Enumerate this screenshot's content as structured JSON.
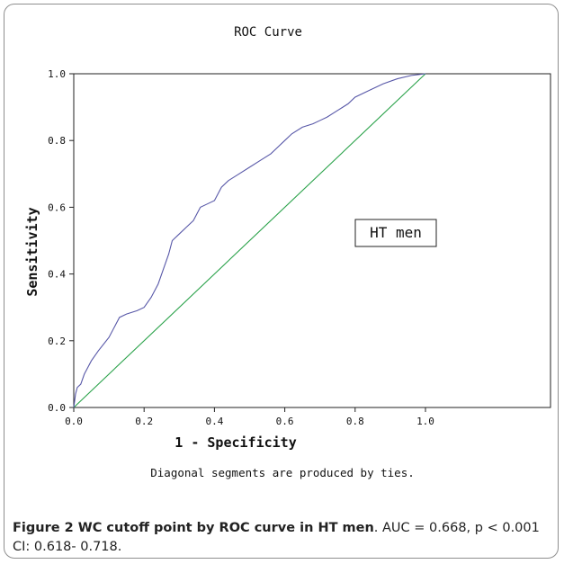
{
  "chart_data": {
    "type": "line",
    "title": "ROC Curve",
    "xlabel": "1 - Specificity",
    "ylabel": "Sensitivity",
    "xlim": [
      0,
      1
    ],
    "ylim": [
      0,
      1
    ],
    "x_ticks": [
      "0.0",
      "0.2",
      "0.4",
      "0.6",
      "0.8",
      "1.0"
    ],
    "y_ticks": [
      "0.0",
      "0.2",
      "0.4",
      "0.6",
      "0.8",
      "1.0"
    ],
    "grid": false,
    "annotation": "HT men",
    "note": "Diagonal segments are produced by ties.",
    "series": [
      {
        "color": "#5858a8",
        "x": [
          0,
          0.005,
          0.01,
          0.02,
          0.03,
          0.04,
          0.05,
          0.07,
          0.1,
          0.12,
          0.13,
          0.15,
          0.18,
          0.2,
          0.22,
          0.24,
          0.25,
          0.27,
          0.28,
          0.3,
          0.32,
          0.34,
          0.36,
          0.38,
          0.4,
          0.42,
          0.44,
          0.47,
          0.5,
          0.53,
          0.56,
          0.58,
          0.6,
          0.62,
          0.65,
          0.68,
          0.7,
          0.72,
          0.75,
          0.78,
          0.8,
          0.84,
          0.88,
          0.92,
          0.96,
          1.0
        ],
        "y": [
          0,
          0.04,
          0.06,
          0.07,
          0.1,
          0.12,
          0.14,
          0.17,
          0.21,
          0.25,
          0.27,
          0.28,
          0.29,
          0.3,
          0.33,
          0.37,
          0.4,
          0.46,
          0.5,
          0.52,
          0.54,
          0.56,
          0.6,
          0.61,
          0.62,
          0.66,
          0.68,
          0.7,
          0.72,
          0.74,
          0.76,
          0.78,
          0.8,
          0.82,
          0.84,
          0.85,
          0.86,
          0.87,
          0.89,
          0.91,
          0.93,
          0.95,
          0.97,
          0.985,
          0.995,
          1.0
        ]
      },
      {
        "color": "#2aa24a",
        "x": [
          0,
          1
        ],
        "y": [
          0,
          1
        ]
      }
    ]
  },
  "caption": {
    "bold": "Figure 2 WC cutoff point by ROC curve in HT men",
    "rest": ". AUC = 0.668, p < 0.001 CI: 0.618- 0.718."
  }
}
